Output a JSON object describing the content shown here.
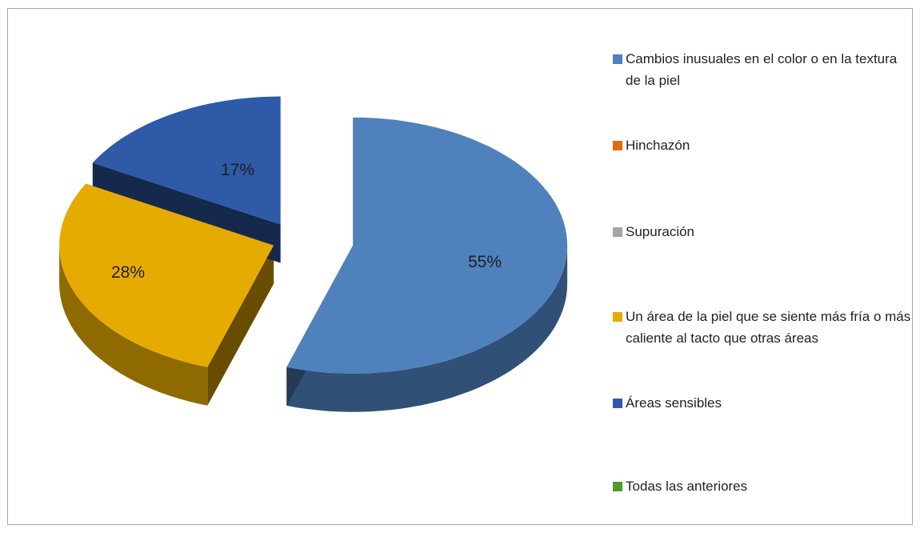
{
  "chart_data": {
    "type": "pie",
    "title": "",
    "exploded": true,
    "style": "3d",
    "legend_position": "right",
    "slices": [
      {
        "label": "Cambios inusuales en el color o en la textura de la piel",
        "value": 55,
        "value_label": "55%",
        "color": "#4f81bd"
      },
      {
        "label": "Hinchazón",
        "value": 0,
        "value_label": "",
        "color": "#e36c09"
      },
      {
        "label": "Supuración",
        "value": 0,
        "value_label": "",
        "color": "#a5a5a5"
      },
      {
        "label": "Un área de la piel que se siente más fría o más caliente al tacto que otras áreas",
        "value": 28,
        "value_label": "28%",
        "color": "#e6ab00"
      },
      {
        "label": "Áreas sensibles",
        "value": 17,
        "value_label": "17%",
        "color": "#2e5aa8"
      },
      {
        "label": "Todas las anteriores",
        "value": 0,
        "value_label": "",
        "color": "#4e9a2e"
      }
    ]
  }
}
